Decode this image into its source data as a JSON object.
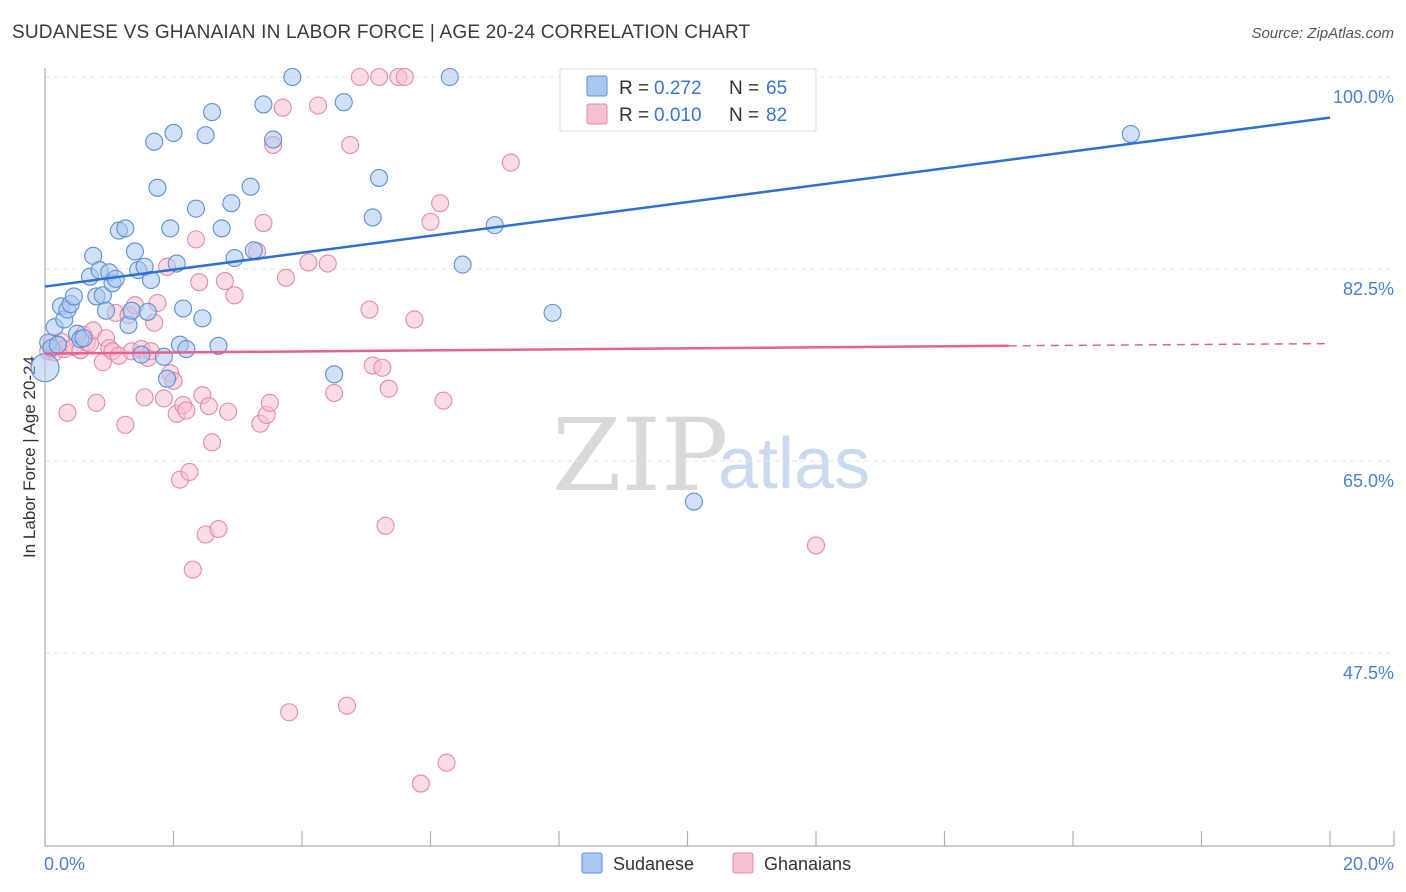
{
  "title": "SUDANESE VS GHANAIAN IN LABOR FORCE | AGE 20-24 CORRELATION CHART",
  "source": "Source: ZipAtlas.com",
  "watermark": {
    "zip": "ZIP",
    "atlas": "atlas"
  },
  "colors": {
    "sudanese_fill": "#a9c8f0",
    "sudanese_stroke": "#5b8fd8",
    "sudanese_line": "#2f6fd1",
    "ghanaian_fill": "#f7c0d0",
    "ghanaian_stroke": "#e58aa8",
    "ghanaian_line": "#e5618f",
    "grid": "#e3e3e3",
    "axis_text": "#4a7fd4"
  },
  "chart_data": {
    "type": "scatter",
    "title": "SUDANESE VS GHANAIAN IN LABOR FORCE | AGE 20-24 CORRELATION CHART",
    "xlabel": "",
    "ylabel": "In Labor Force | Age 20-24",
    "xlim": [
      0,
      20
    ],
    "ylim": [
      30,
      101.5
    ],
    "x_tick_labels": [
      "0.0%",
      "20.0%"
    ],
    "y_ticks": [
      {
        "value": 100.0,
        "label": "100.0%"
      },
      {
        "value": 82.5,
        "label": "82.5%"
      },
      {
        "value": 65.0,
        "label": "65.0%"
      },
      {
        "value": 47.5,
        "label": "47.5%"
      }
    ],
    "legend": {
      "entries": [
        {
          "r_label": "R =",
          "r_value": "0.272",
          "n_label": "N =",
          "n_value": "65"
        },
        {
          "r_label": "R =",
          "r_value": "0.010",
          "n_label": "N =",
          "n_value": "82"
        }
      ]
    },
    "series": [
      {
        "name": "Sudanese",
        "r": 0.272,
        "n": 65,
        "trend": {
          "x0": 0.0,
          "y0": 80.9,
          "x1": 20.0,
          "y1": 96.3
        },
        "points": [
          [
            0.05,
            75.8
          ],
          [
            0.1,
            75.3
          ],
          [
            0.15,
            77.2
          ],
          [
            0.2,
            75.6
          ],
          [
            0.25,
            79.1
          ],
          [
            0.3,
            77.9
          ],
          [
            0.35,
            78.8
          ],
          [
            0.4,
            79.3
          ],
          [
            0.45,
            80.0
          ],
          [
            0.5,
            76.6
          ],
          [
            0.55,
            76.1
          ],
          [
            0.6,
            76.2
          ],
          [
            0.7,
            81.8
          ],
          [
            0.75,
            83.7
          ],
          [
            0.8,
            80.0
          ],
          [
            0.85,
            82.4
          ],
          [
            0.9,
            80.1
          ],
          [
            0.95,
            78.7
          ],
          [
            1.0,
            82.2
          ],
          [
            1.05,
            81.2
          ],
          [
            1.1,
            81.6
          ],
          [
            1.15,
            86.0
          ],
          [
            1.25,
            86.2
          ],
          [
            1.3,
            77.4
          ],
          [
            1.35,
            78.7
          ],
          [
            1.4,
            84.1
          ],
          [
            1.45,
            82.4
          ],
          [
            1.5,
            74.7
          ],
          [
            1.55,
            82.7
          ],
          [
            1.6,
            78.6
          ],
          [
            1.65,
            81.5
          ],
          [
            1.7,
            94.1
          ],
          [
            1.75,
            89.9
          ],
          [
            1.85,
            74.5
          ],
          [
            1.9,
            72.5
          ],
          [
            1.95,
            86.2
          ],
          [
            2.0,
            94.9
          ],
          [
            2.05,
            83.0
          ],
          [
            2.1,
            75.6
          ],
          [
            2.15,
            78.9
          ],
          [
            2.2,
            75.2
          ],
          [
            2.35,
            88.0
          ],
          [
            2.45,
            78.0
          ],
          [
            2.5,
            94.7
          ],
          [
            2.6,
            96.8
          ],
          [
            2.7,
            75.5
          ],
          [
            2.75,
            86.2
          ],
          [
            2.9,
            88.5
          ],
          [
            2.95,
            83.5
          ],
          [
            3.2,
            90.0
          ],
          [
            3.25,
            84.2
          ],
          [
            3.4,
            97.5
          ],
          [
            3.55,
            94.3
          ],
          [
            3.85,
            100.0
          ],
          [
            4.5,
            72.9
          ],
          [
            4.65,
            97.7
          ],
          [
            5.1,
            87.2
          ],
          [
            5.2,
            90.8
          ],
          [
            6.3,
            100.0
          ],
          [
            6.5,
            82.9
          ],
          [
            7.0,
            86.5
          ],
          [
            7.9,
            78.5
          ],
          [
            10.1,
            61.3
          ],
          [
            16.9,
            94.8
          ],
          [
            0.0,
            73.5
          ]
        ]
      },
      {
        "name": "Ghanaians",
        "r": 0.01,
        "n": 82,
        "trend": {
          "x0": 0.0,
          "y0": 74.8,
          "x1": 15.0,
          "y1": 75.5,
          "dash_to_x": 20.0,
          "dash_to_y": 75.7
        },
        "points": [
          [
            0.05,
            75.0
          ],
          [
            0.1,
            75.8
          ],
          [
            0.15,
            74.9
          ],
          [
            0.2,
            75.5
          ],
          [
            0.25,
            75.9
          ],
          [
            0.3,
            75.2
          ],
          [
            0.35,
            69.4
          ],
          [
            0.45,
            75.4
          ],
          [
            0.55,
            75.1
          ],
          [
            0.6,
            76.5
          ],
          [
            0.65,
            75.8
          ],
          [
            0.7,
            75.7
          ],
          [
            0.75,
            76.9
          ],
          [
            0.8,
            70.3
          ],
          [
            0.9,
            74.0
          ],
          [
            0.95,
            76.2
          ],
          [
            1.0,
            75.3
          ],
          [
            1.05,
            75.0
          ],
          [
            1.1,
            78.5
          ],
          [
            1.15,
            74.6
          ],
          [
            1.25,
            68.3
          ],
          [
            1.3,
            78.3
          ],
          [
            1.35,
            75.0
          ],
          [
            1.4,
            79.2
          ],
          [
            1.5,
            75.2
          ],
          [
            1.55,
            70.8
          ],
          [
            1.6,
            74.4
          ],
          [
            1.65,
            75.0
          ],
          [
            1.7,
            77.6
          ],
          [
            1.75,
            79.4
          ],
          [
            1.85,
            70.7
          ],
          [
            1.9,
            82.7
          ],
          [
            1.95,
            73.0
          ],
          [
            2.0,
            72.3
          ],
          [
            2.05,
            69.3
          ],
          [
            2.1,
            63.3
          ],
          [
            2.15,
            70.1
          ],
          [
            2.2,
            69.6
          ],
          [
            2.25,
            64.0
          ],
          [
            2.3,
            55.1
          ],
          [
            2.35,
            85.2
          ],
          [
            2.4,
            81.3
          ],
          [
            2.45,
            71.0
          ],
          [
            2.5,
            58.3
          ],
          [
            2.55,
            70.0
          ],
          [
            2.6,
            66.7
          ],
          [
            2.7,
            58.8
          ],
          [
            2.8,
            81.4
          ],
          [
            2.85,
            69.5
          ],
          [
            2.95,
            80.1
          ],
          [
            3.3,
            84.1
          ],
          [
            3.35,
            68.4
          ],
          [
            3.4,
            86.7
          ],
          [
            3.45,
            69.2
          ],
          [
            3.5,
            70.3
          ],
          [
            3.55,
            93.8
          ],
          [
            3.7,
            97.2
          ],
          [
            3.75,
            81.7
          ],
          [
            3.8,
            42.1
          ],
          [
            4.1,
            83.1
          ],
          [
            4.25,
            97.4
          ],
          [
            4.4,
            83.0
          ],
          [
            4.5,
            71.2
          ],
          [
            4.7,
            42.7
          ],
          [
            4.75,
            93.8
          ],
          [
            4.9,
            100.0
          ],
          [
            5.05,
            78.8
          ],
          [
            5.1,
            73.7
          ],
          [
            5.2,
            100.0
          ],
          [
            5.25,
            73.5
          ],
          [
            5.3,
            59.1
          ],
          [
            5.35,
            71.6
          ],
          [
            5.5,
            100.0
          ],
          [
            5.6,
            100.0
          ],
          [
            5.75,
            77.9
          ],
          [
            5.85,
            35.6
          ],
          [
            6.0,
            86.8
          ],
          [
            6.15,
            88.5
          ],
          [
            6.2,
            70.5
          ],
          [
            6.25,
            37.5
          ],
          [
            7.25,
            92.2
          ],
          [
            12.0,
            57.3
          ]
        ]
      }
    ],
    "bottom_legend": [
      "Sudanese",
      "Ghanaians"
    ]
  }
}
